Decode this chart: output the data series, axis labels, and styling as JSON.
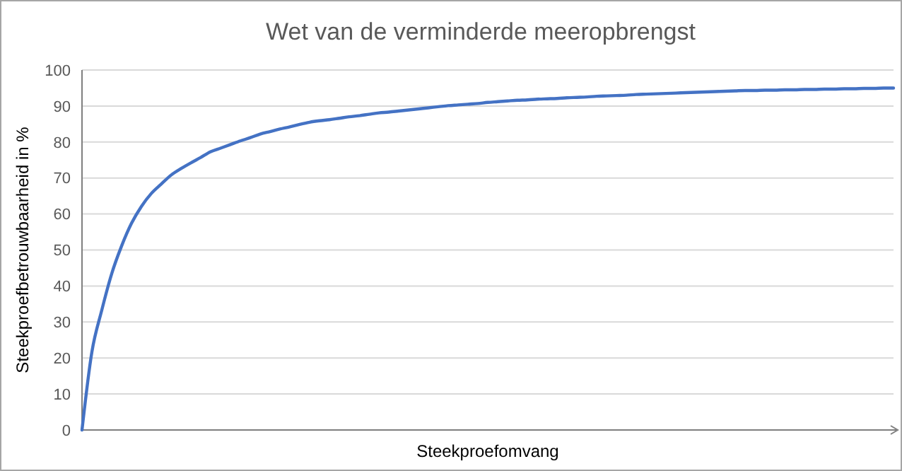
{
  "chart_data": {
    "type": "line",
    "title": "Wet van de verminderde meeropbrengst",
    "xlabel": "Steekproefomvang",
    "ylabel": "Steekproefbetrouwbaarheid in %",
    "categories": [
      null,
      null,
      null,
      null,
      null,
      null,
      null,
      null,
      null,
      null,
      null,
      null,
      null,
      null,
      null,
      null,
      null,
      null,
      null,
      null,
      null,
      null,
      null,
      null,
      null,
      null,
      null,
      null,
      null,
      null,
      null,
      null,
      null,
      null,
      null,
      null,
      null,
      null,
      null,
      null,
      null,
      null,
      null,
      null,
      null,
      null,
      null,
      null,
      null,
      null,
      null,
      null,
      null,
      null,
      null,
      null,
      null,
      null,
      null,
      null,
      null,
      null,
      null,
      null,
      null,
      null,
      null,
      null,
      null,
      null,
      null,
      null,
      null,
      null,
      null,
      null,
      null,
      null,
      null,
      null,
      null,
      null,
      null
    ],
    "series": [
      {
        "color": "#4472c4",
        "values": [
          0,
          21.7,
          33.3,
          43.4,
          51.1,
          57.4,
          62.1,
          65.7,
          68.3,
          70.8,
          72.6,
          74.2,
          75.7,
          77.3,
          78.3,
          79.3,
          80.3,
          81.2,
          82.2,
          82.9,
          83.6,
          84.2,
          84.9,
          85.5,
          85.9,
          86.2,
          86.6,
          87.0,
          87.3,
          87.7,
          88.1,
          88.3,
          88.6,
          88.9,
          89.2,
          89.5,
          89.8,
          90.1,
          90.3,
          90.5,
          90.7,
          91.0,
          91.2,
          91.4,
          91.6,
          91.7,
          91.9,
          92.0,
          92.1,
          92.3,
          92.4,
          92.5,
          92.7,
          92.8,
          92.9,
          93.0,
          93.2,
          93.3,
          93.4,
          93.5,
          93.6,
          93.7,
          93.8,
          93.9,
          94.0,
          94.1,
          94.2,
          94.3,
          94.3,
          94.4,
          94.4,
          94.5,
          94.5,
          94.6,
          94.6,
          94.7,
          94.7,
          94.8,
          94.8,
          94.9,
          94.9,
          95.0,
          95.0
        ]
      }
    ],
    "ylim": [
      0,
      100
    ],
    "yticks": [
      0,
      10,
      20,
      30,
      40,
      50,
      60,
      70,
      80,
      90,
      100
    ],
    "grid": "y",
    "marker": "none",
    "line_style": "solid"
  }
}
